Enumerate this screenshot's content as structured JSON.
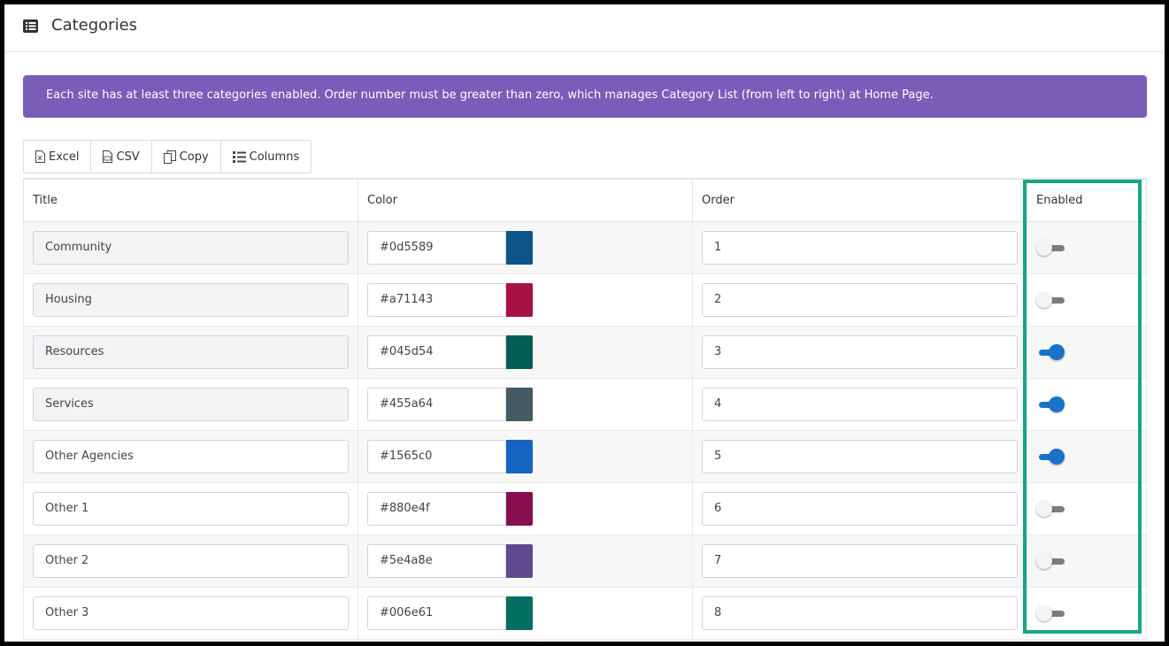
{
  "header": {
    "title": "Categories",
    "icon": "list-alt-icon"
  },
  "alert": {
    "text": "Each site has at least three categories enabled. Order number must be greater than zero, which manages Category List (from left to right) at Home Page."
  },
  "toolbar": {
    "excel_label": "Excel",
    "csv_label": "CSV",
    "copy_label": "Copy",
    "columns_label": "Columns"
  },
  "table": {
    "headers": {
      "title": "Title",
      "color": "Color",
      "order": "Order",
      "enabled": "Enabled"
    },
    "rows": [
      {
        "title": "Community",
        "readonly": true,
        "color": "#0d5589",
        "order": "1",
        "enabled": false
      },
      {
        "title": "Housing",
        "readonly": true,
        "color": "#a71143",
        "order": "2",
        "enabled": false
      },
      {
        "title": "Resources",
        "readonly": true,
        "color": "#045d54",
        "order": "3",
        "enabled": true
      },
      {
        "title": "Services",
        "readonly": true,
        "color": "#455a64",
        "order": "4",
        "enabled": true
      },
      {
        "title": "Other Agencies",
        "readonly": false,
        "color": "#1565c0",
        "order": "5",
        "enabled": true
      },
      {
        "title": "Other 1",
        "readonly": false,
        "color": "#880e4f",
        "order": "6",
        "enabled": false
      },
      {
        "title": "Other 2",
        "readonly": false,
        "color": "#5e4a8e",
        "order": "7",
        "enabled": false
      },
      {
        "title": "Other 3",
        "readonly": false,
        "color": "#006e61",
        "order": "8",
        "enabled": false
      }
    ]
  },
  "colors": {
    "alert_bg": "#7b5cb8",
    "toggle_on": "#1a73c8",
    "highlight_border": "#17a589"
  }
}
